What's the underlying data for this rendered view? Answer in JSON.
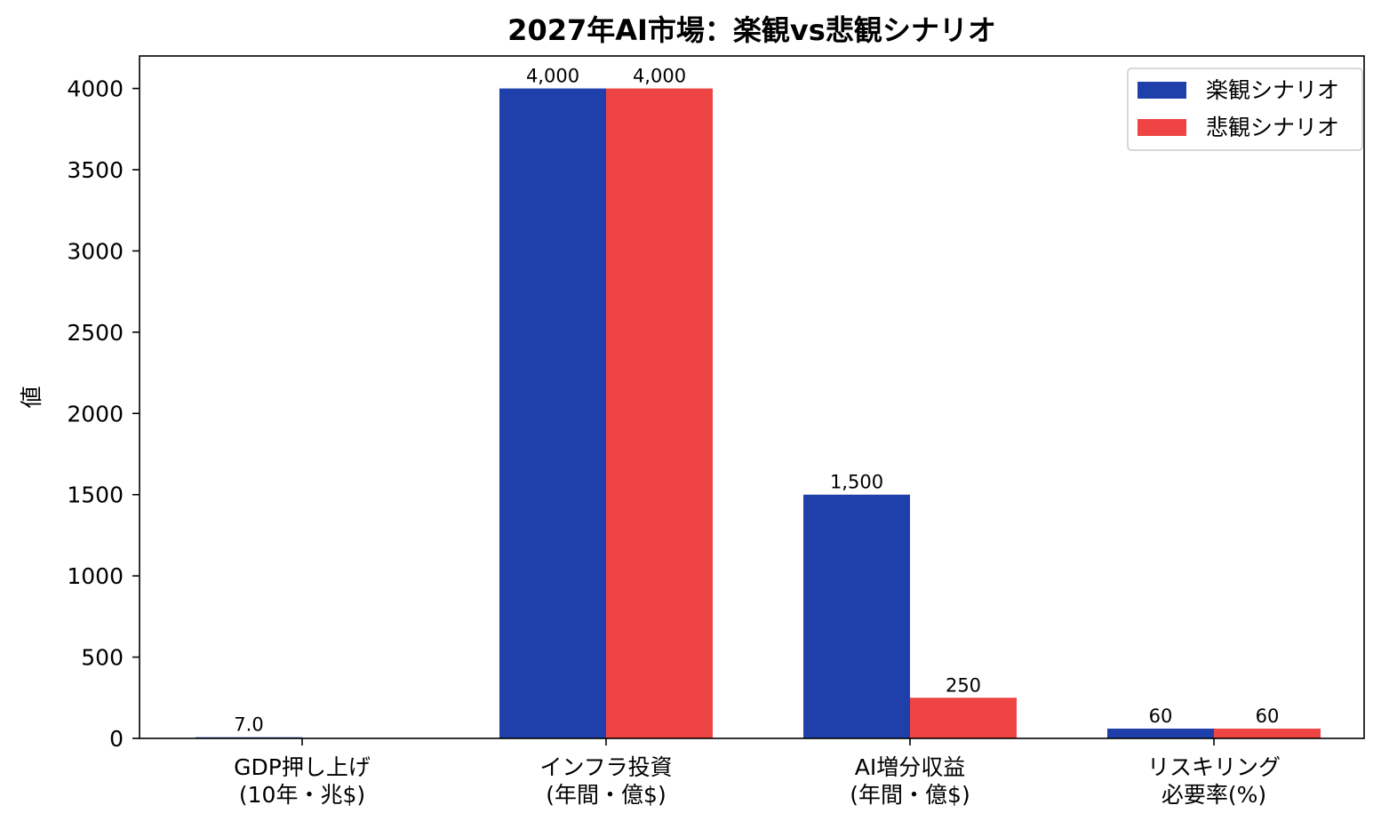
{
  "chart_data": {
    "type": "bar",
    "title": "2027年AI市場：楽観vs悲観シナリオ",
    "xlabel": "",
    "ylabel": "値",
    "categories": [
      [
        "GDP押し上げ",
        "(10年・兆$)"
      ],
      [
        "インフラ投資",
        "(年間・億$)"
      ],
      [
        "AI増分収益",
        "(年間・億$)"
      ],
      [
        "リスキリング",
        "必要率(%)"
      ]
    ],
    "series": [
      {
        "name": "楽観シナリオ",
        "color": "#1f3fab",
        "values": [
          7.0,
          4000,
          1500,
          60
        ],
        "labels": [
          "7.0",
          "4,000",
          "1,500",
          "60"
        ]
      },
      {
        "name": "悲観シナリオ",
        "color": "#ef4444",
        "values": [
          null,
          4000,
          250,
          60
        ],
        "labels": [
          "",
          "4,000",
          "250",
          "60"
        ]
      }
    ],
    "ylim": [
      0,
      4200
    ],
    "yticks": [
      0,
      500,
      1000,
      1500,
      2000,
      2500,
      3000,
      3500,
      4000
    ],
    "grid": false,
    "legend_position": "top-right"
  }
}
